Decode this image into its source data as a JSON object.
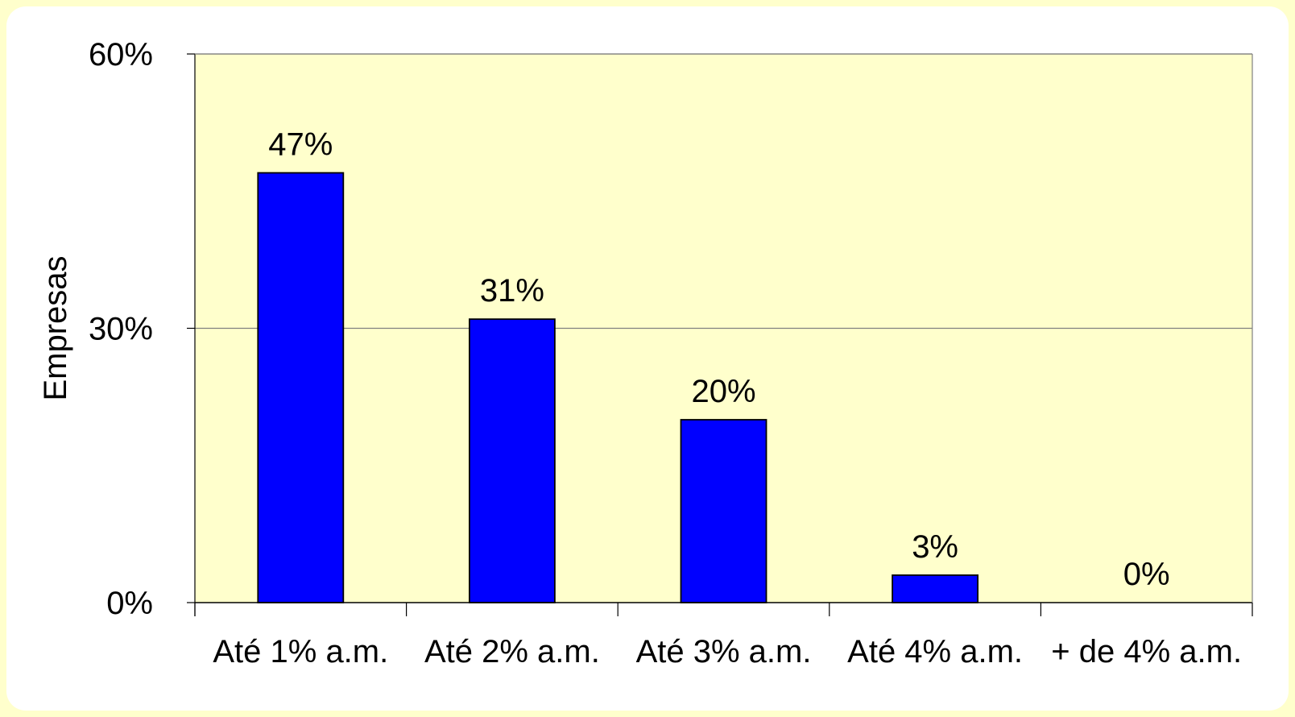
{
  "chart_data": {
    "type": "bar",
    "categories": [
      "Até 1% a.m.",
      "Até 2% a.m.",
      "Até 3% a.m.",
      "Até 4% a.m.",
      "+ de 4% a.m."
    ],
    "values": [
      47,
      31,
      20,
      3,
      0
    ],
    "data_labels": [
      "47%",
      "31%",
      "20%",
      "3%",
      "0%"
    ],
    "ylabel": "Empresas",
    "ylim": [
      0,
      60
    ],
    "yticks": [
      {
        "value": 0,
        "label": "0%"
      },
      {
        "value": 30,
        "label": "30%"
      },
      {
        "value": 60,
        "label": "60%"
      }
    ],
    "grid": true,
    "colors": {
      "bar": "#0000ff",
      "plot_background": "#ffffcc",
      "page_background": "#ffffcc",
      "card_background": "#ffffff",
      "gridline": "#808080"
    }
  }
}
